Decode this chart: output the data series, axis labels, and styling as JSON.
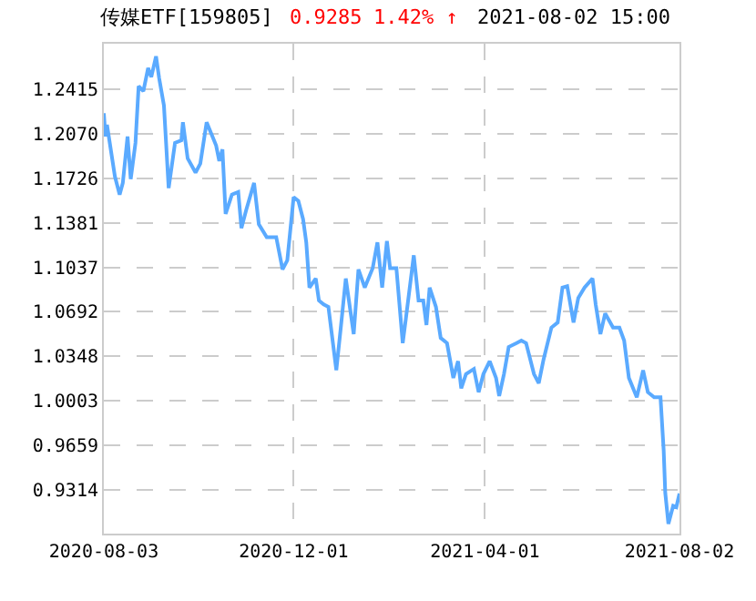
{
  "chart_data": {
    "type": "line",
    "title": "传媒ETF[159805]",
    "annotations": [
      "0.9285",
      "1.42% ↑",
      "2021-08-02 15:00"
    ],
    "x": [
      "2020-08-03",
      "2020-08-04",
      "2020-08-05",
      "2020-08-10",
      "2020-08-13",
      "2020-08-15",
      "2020-08-18",
      "2020-08-20",
      "2020-08-23",
      "2020-08-25",
      "2020-08-28",
      "2020-08-31",
      "2020-09-02",
      "2020-09-05",
      "2020-09-07",
      "2020-09-10",
      "2020-09-13",
      "2020-09-17",
      "2020-09-21",
      "2020-09-22",
      "2020-09-25",
      "2020-09-30",
      "2020-10-03",
      "2020-10-07",
      "2020-10-13",
      "2020-10-15",
      "2020-10-17",
      "2020-10-19",
      "2020-10-23",
      "2020-10-27",
      "2020-10-29",
      "2020-11-01",
      "2020-11-06",
      "2020-11-09",
      "2020-11-14",
      "2020-11-20",
      "2020-11-24",
      "2020-11-27",
      "2020-12-01",
      "2020-12-04",
      "2020-12-07",
      "2020-12-09",
      "2020-12-11",
      "2020-12-15",
      "2020-12-17",
      "2020-12-20",
      "2020-12-23",
      "2020-12-28",
      "2020-12-31",
      "2021-01-03",
      "2021-01-08",
      "2021-01-11",
      "2021-01-15",
      "2021-01-20",
      "2021-01-23",
      "2021-01-26",
      "2021-01-29",
      "2021-01-31",
      "2021-02-04",
      "2021-02-08",
      "2021-02-10",
      "2021-02-15",
      "2021-02-18",
      "2021-02-21",
      "2021-02-23",
      "2021-02-25",
      "2021-03-01",
      "2021-03-04",
      "2021-03-08",
      "2021-03-12",
      "2021-03-15",
      "2021-03-17",
      "2021-03-20",
      "2021-03-25",
      "2021-03-28",
      "2021-03-31",
      "2021-04-04",
      "2021-04-08",
      "2021-04-10",
      "2021-04-13",
      "2021-04-16",
      "2021-04-21",
      "2021-04-24",
      "2021-04-27",
      "2021-05-02",
      "2021-05-05",
      "2021-05-08",
      "2021-05-13",
      "2021-05-17",
      "2021-05-20",
      "2021-05-23",
      "2021-05-27",
      "2021-05-30",
      "2021-06-03",
      "2021-06-08",
      "2021-06-10",
      "2021-06-13",
      "2021-06-16",
      "2021-06-21",
      "2021-06-25",
      "2021-06-28",
      "2021-07-01",
      "2021-07-06",
      "2021-07-10",
      "2021-07-13",
      "2021-07-17",
      "2021-07-21",
      "2021-07-23",
      "2021-07-24",
      "2021-07-26",
      "2021-07-29",
      "2021-07-31",
      "2021-08-02"
    ],
    "series": [
      {
        "color": "#5aaaff",
        "values": [
          1.223,
          1.205,
          1.214,
          1.174,
          1.16,
          1.169,
          1.205,
          1.172,
          1.2,
          1.244,
          1.24,
          1.258,
          1.251,
          1.267,
          1.25,
          1.229,
          1.165,
          1.2,
          1.202,
          1.216,
          1.188,
          1.177,
          1.184,
          1.216,
          1.198,
          1.186,
          1.195,
          1.145,
          1.16,
          1.162,
          1.134,
          1.148,
          1.169,
          1.137,
          1.127,
          1.127,
          1.102,
          1.109,
          1.158,
          1.155,
          1.141,
          1.123,
          1.088,
          1.095,
          1.078,
          1.075,
          1.073,
          1.024,
          1.059,
          1.095,
          1.052,
          1.102,
          1.088,
          1.103,
          1.123,
          1.088,
          1.124,
          1.103,
          1.103,
          1.045,
          1.064,
          1.113,
          1.078,
          1.078,
          1.059,
          1.088,
          1.073,
          1.049,
          1.045,
          1.018,
          1.031,
          1.01,
          1.021,
          1.025,
          1.007,
          1.021,
          1.031,
          1.018,
          1.004,
          1.021,
          1.042,
          1.045,
          1.047,
          1.045,
          1.021,
          1.014,
          1.032,
          1.057,
          1.061,
          1.088,
          1.089,
          1.061,
          1.08,
          1.088,
          1.095,
          1.075,
          1.052,
          1.068,
          1.057,
          1.057,
          1.047,
          1.018,
          1.003,
          1.024,
          1.007,
          1.003,
          1.003,
          0.962,
          0.929,
          0.905,
          0.919,
          0.918,
          0.9285
        ]
      }
    ],
    "xlim": [
      "2020-08-03",
      "2021-08-02"
    ],
    "xticks": [
      "2020-08-03",
      "2020-12-01",
      "2021-04-01",
      "2021-08-02"
    ],
    "ylim": [
      0.8975,
      1.2768
    ],
    "yticks": [
      {
        "value": 0.9314,
        "label": "0.9314"
      },
      {
        "value": 0.9659,
        "label": "0.9659"
      },
      {
        "value": 1.0003,
        "label": "1.0003"
      },
      {
        "value": 1.0348,
        "label": "1.0348"
      },
      {
        "value": 1.0692,
        "label": "1.0692"
      },
      {
        "value": 1.1037,
        "label": "1.1037"
      },
      {
        "value": 1.1381,
        "label": "1.1381"
      },
      {
        "value": 1.1726,
        "label": "1.1726"
      },
      {
        "value": 1.207,
        "label": "1.2070"
      },
      {
        "value": 1.2415,
        "label": "1.2415"
      }
    ],
    "grid": true,
    "marker": "none",
    "line_style": "solid"
  }
}
